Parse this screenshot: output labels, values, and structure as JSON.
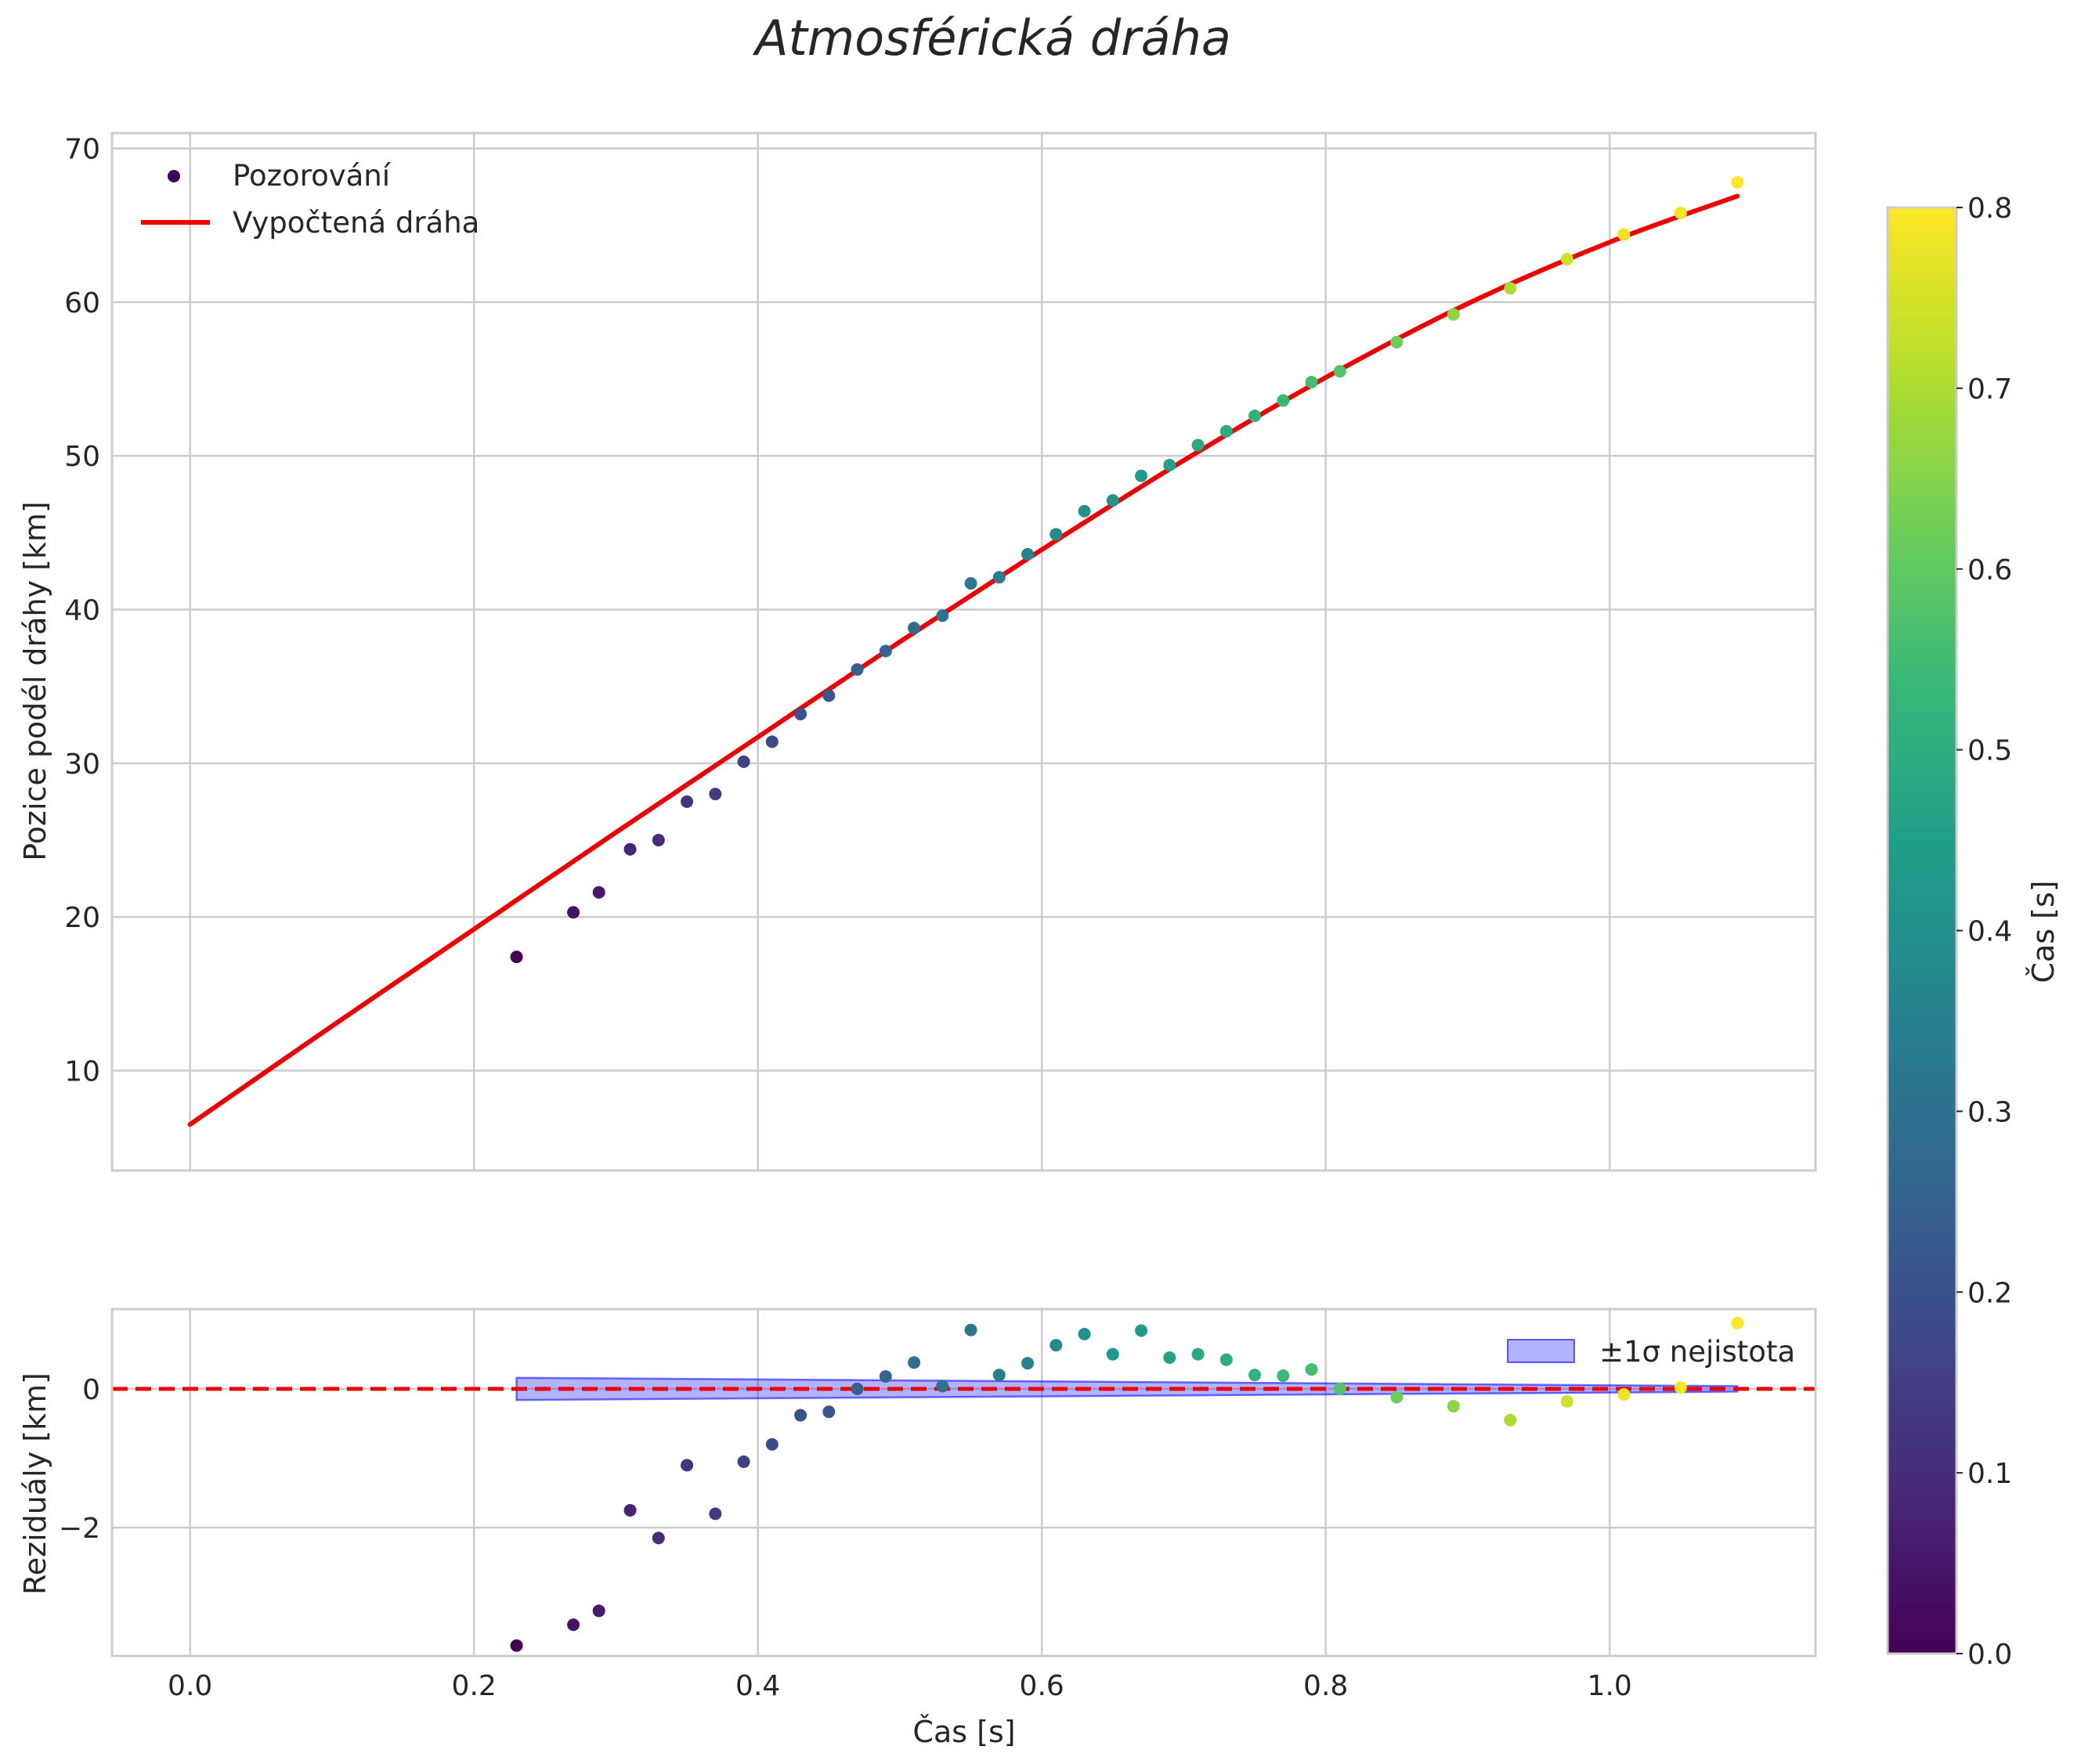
{
  "chart_data": [
    {
      "type": "scatter",
      "title": "Atmosférická dráha",
      "panel": "top",
      "xlabel": "",
      "ylabel": "Pozice podél dráhy [km]",
      "xlim": [
        -0.055,
        1.145
      ],
      "ylim": [
        3.5,
        71
      ],
      "xticks": [
        0.0,
        0.2,
        0.4,
        0.6,
        0.8,
        1.0
      ],
      "yticks": [
        10,
        20,
        30,
        40,
        50,
        60,
        70
      ],
      "ytick_labels": [
        "10",
        "20",
        "30",
        "40",
        "50",
        "60",
        "70"
      ],
      "grid": true,
      "legend_position": "top-left",
      "series": [
        {
          "name": "Pozorování",
          "kind": "scatter",
          "color_by": "t",
          "points": [
            {
              "x": 0.23,
              "y": 17.4,
              "c": 0.0
            },
            {
              "x": 0.27,
              "y": 20.3,
              "c": 0.04
            },
            {
              "x": 0.288,
              "y": 21.6,
              "c": 0.058
            },
            {
              "x": 0.31,
              "y": 24.4,
              "c": 0.08
            },
            {
              "x": 0.33,
              "y": 25.0,
              "c": 0.1
            },
            {
              "x": 0.35,
              "y": 27.5,
              "c": 0.12
            },
            {
              "x": 0.37,
              "y": 28.0,
              "c": 0.14
            },
            {
              "x": 0.39,
              "y": 30.1,
              "c": 0.16
            },
            {
              "x": 0.41,
              "y": 31.4,
              "c": 0.18
            },
            {
              "x": 0.43,
              "y": 33.2,
              "c": 0.2
            },
            {
              "x": 0.45,
              "y": 34.4,
              "c": 0.22
            },
            {
              "x": 0.47,
              "y": 36.1,
              "c": 0.24
            },
            {
              "x": 0.49,
              "y": 37.3,
              "c": 0.26
            },
            {
              "x": 0.51,
              "y": 38.8,
              "c": 0.28
            },
            {
              "x": 0.53,
              "y": 39.6,
              "c": 0.3
            },
            {
              "x": 0.55,
              "y": 41.7,
              "c": 0.32
            },
            {
              "x": 0.57,
              "y": 42.1,
              "c": 0.34
            },
            {
              "x": 0.59,
              "y": 43.6,
              "c": 0.36
            },
            {
              "x": 0.61,
              "y": 44.9,
              "c": 0.38
            },
            {
              "x": 0.63,
              "y": 46.4,
              "c": 0.4
            },
            {
              "x": 0.65,
              "y": 47.1,
              "c": 0.42
            },
            {
              "x": 0.67,
              "y": 48.7,
              "c": 0.44
            },
            {
              "x": 0.69,
              "y": 49.4,
              "c": 0.46
            },
            {
              "x": 0.71,
              "y": 50.7,
              "c": 0.48
            },
            {
              "x": 0.73,
              "y": 51.6,
              "c": 0.5
            },
            {
              "x": 0.75,
              "y": 52.6,
              "c": 0.52
            },
            {
              "x": 0.77,
              "y": 53.6,
              "c": 0.54
            },
            {
              "x": 0.79,
              "y": 54.8,
              "c": 0.56
            },
            {
              "x": 0.81,
              "y": 55.5,
              "c": 0.58
            },
            {
              "x": 0.85,
              "y": 57.4,
              "c": 0.62
            },
            {
              "x": 0.89,
              "y": 59.2,
              "c": 0.66
            },
            {
              "x": 0.93,
              "y": 60.9,
              "c": 0.7
            },
            {
              "x": 0.97,
              "y": 62.8,
              "c": 0.74
            },
            {
              "x": 1.01,
              "y": 64.4,
              "c": 0.78
            },
            {
              "x": 1.05,
              "y": 65.8,
              "c": 0.79
            },
            {
              "x": 1.09,
              "y": 67.8,
              "c": 0.8
            }
          ]
        },
        {
          "name": "Vypočtená dráha",
          "kind": "line",
          "color": "#ee0000",
          "x": [
            0.0,
            0.1,
            0.2,
            0.3,
            0.4,
            0.5,
            0.6,
            0.7,
            0.8,
            0.9,
            1.0,
            1.09
          ],
          "y": [
            6.5,
            12.9,
            19.2,
            25.5,
            31.7,
            37.9,
            43.9,
            49.7,
            55.1,
            59.9,
            63.9,
            66.9
          ]
        }
      ]
    },
    {
      "type": "scatter",
      "panel": "bottom",
      "xlabel": "Čas [s]",
      "ylabel": "Reziduály [km]",
      "xlim": [
        -0.055,
        1.145
      ],
      "ylim": [
        -3.85,
        1.15
      ],
      "xticks": [
        0.0,
        0.2,
        0.4,
        0.6,
        0.8,
        1.0
      ],
      "xtick_labels": [
        "0.0",
        "0.2",
        "0.4",
        "0.6",
        "0.8",
        "1.0"
      ],
      "yticks": [
        -2,
        0
      ],
      "ytick_labels": [
        "−2",
        "0"
      ],
      "grid": true,
      "legend_position": "top-right",
      "reference_line": {
        "y": 0,
        "style": "dashed",
        "color": "#ee0000"
      },
      "band": {
        "name": "±1σ nejistota",
        "color": "#0000ff",
        "x": [
          0.23,
          1.09
        ],
        "half_width": [
          0.16,
          0.04
        ]
      },
      "series": [
        {
          "name": "Reziduály",
          "kind": "scatter",
          "color_by": "t",
          "points": [
            {
              "x": 0.23,
              "y": -3.7,
              "c": 0.0
            },
            {
              "x": 0.27,
              "y": -3.4,
              "c": 0.04
            },
            {
              "x": 0.288,
              "y": -3.2,
              "c": 0.058
            },
            {
              "x": 0.31,
              "y": -1.75,
              "c": 0.08
            },
            {
              "x": 0.33,
              "y": -2.15,
              "c": 0.1
            },
            {
              "x": 0.35,
              "y": -1.1,
              "c": 0.12
            },
            {
              "x": 0.37,
              "y": -1.8,
              "c": 0.14
            },
            {
              "x": 0.39,
              "y": -1.05,
              "c": 0.16
            },
            {
              "x": 0.41,
              "y": -0.8,
              "c": 0.18
            },
            {
              "x": 0.43,
              "y": -0.38,
              "c": 0.2
            },
            {
              "x": 0.45,
              "y": -0.33,
              "c": 0.22
            },
            {
              "x": 0.47,
              "y": 0.0,
              "c": 0.24
            },
            {
              "x": 0.49,
              "y": 0.18,
              "c": 0.26
            },
            {
              "x": 0.51,
              "y": 0.38,
              "c": 0.28
            },
            {
              "x": 0.53,
              "y": 0.04,
              "c": 0.3
            },
            {
              "x": 0.55,
              "y": 0.85,
              "c": 0.32
            },
            {
              "x": 0.57,
              "y": 0.2,
              "c": 0.34
            },
            {
              "x": 0.59,
              "y": 0.37,
              "c": 0.36
            },
            {
              "x": 0.61,
              "y": 0.63,
              "c": 0.38
            },
            {
              "x": 0.63,
              "y": 0.79,
              "c": 0.4
            },
            {
              "x": 0.65,
              "y": 0.5,
              "c": 0.42
            },
            {
              "x": 0.67,
              "y": 0.84,
              "c": 0.44
            },
            {
              "x": 0.69,
              "y": 0.45,
              "c": 0.46
            },
            {
              "x": 0.71,
              "y": 0.5,
              "c": 0.48
            },
            {
              "x": 0.73,
              "y": 0.42,
              "c": 0.5
            },
            {
              "x": 0.75,
              "y": 0.2,
              "c": 0.52
            },
            {
              "x": 0.77,
              "y": 0.19,
              "c": 0.54
            },
            {
              "x": 0.79,
              "y": 0.28,
              "c": 0.56
            },
            {
              "x": 0.81,
              "y": 0.0,
              "c": 0.58
            },
            {
              "x": 0.85,
              "y": -0.12,
              "c": 0.62
            },
            {
              "x": 0.89,
              "y": -0.25,
              "c": 0.66
            },
            {
              "x": 0.93,
              "y": -0.45,
              "c": 0.7
            },
            {
              "x": 0.97,
              "y": -0.18,
              "c": 0.74
            },
            {
              "x": 1.01,
              "y": -0.08,
              "c": 0.78
            },
            {
              "x": 1.05,
              "y": 0.02,
              "c": 0.79
            },
            {
              "x": 1.09,
              "y": 0.95,
              "c": 0.8
            }
          ]
        }
      ]
    }
  ],
  "colorbar": {
    "label": "Čas [s]",
    "colormap": "viridis",
    "range": [
      0.0,
      0.8
    ],
    "ticks": [
      0.0,
      0.1,
      0.2,
      0.3,
      0.4,
      0.5,
      0.6,
      0.7,
      0.8
    ],
    "tick_labels": [
      "0.0",
      "0.1",
      "0.2",
      "0.3",
      "0.4",
      "0.5",
      "0.6",
      "0.7",
      "0.8"
    ]
  },
  "legend_top": [
    {
      "label": "Pozorování",
      "marker": "dot",
      "color": "#440154"
    },
    {
      "label": "Vypočtená dráha",
      "marker": "line",
      "color": "#ee0000"
    }
  ],
  "legend_bottom": [
    {
      "label": "±1σ nejistota",
      "marker": "patch",
      "color": "#0000ff"
    }
  ]
}
